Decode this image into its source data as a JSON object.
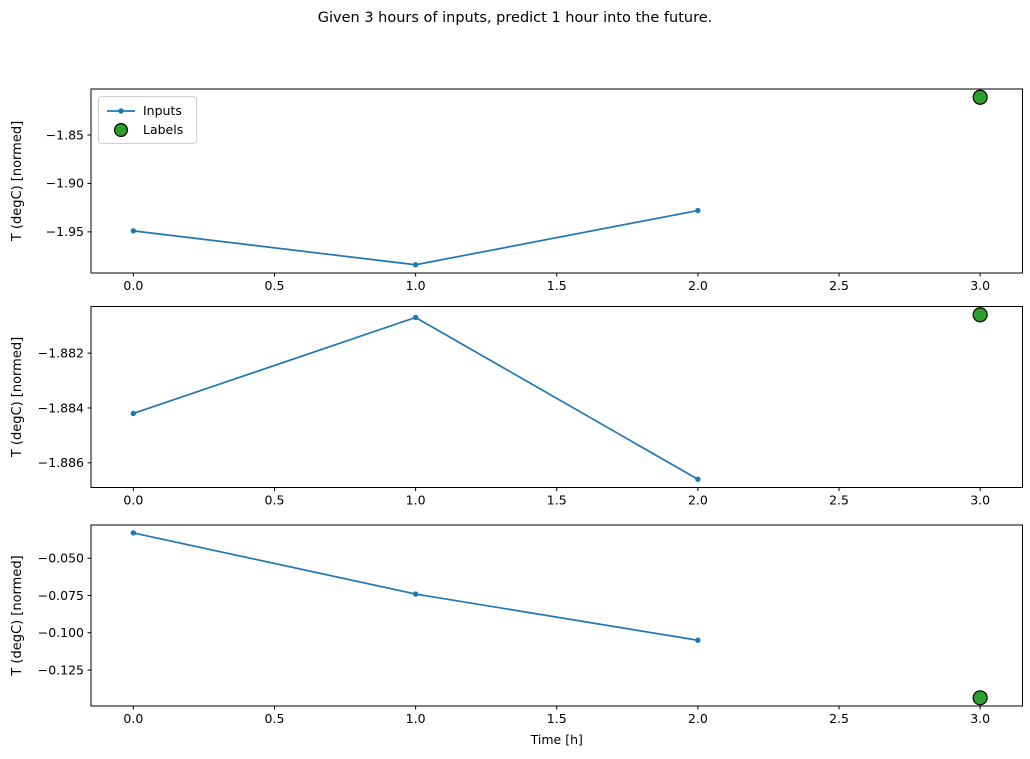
{
  "title": "Given 3 hours of inputs, predict 1 hour into the future.",
  "xlabel": "Time [h]",
  "ylabel": "T (degC) [normed]",
  "colors": {
    "inputs": "#1f77b4",
    "labels_fill": "#2ca02c",
    "labels_edge": "#000000",
    "axis": "#000000",
    "text": "#000000",
    "legend_border": "#cccccc",
    "background": "#ffffff"
  },
  "legend": {
    "position": "upper left of first subplot",
    "items": [
      {
        "label": "Inputs",
        "type": "line-with-dot-marker",
        "color": "#1f77b4"
      },
      {
        "label": "Labels",
        "type": "filled-circle-black-edge",
        "color": "#2ca02c"
      }
    ]
  },
  "chart_data": [
    {
      "type": "line",
      "subplot": 1,
      "xlabel": "",
      "ylabel": "T (degC) [normed]",
      "xlim": [
        -0.15,
        3.15
      ],
      "ylim": [
        -1.9925,
        -1.8025
      ],
      "grid": false,
      "xticks": [
        0.0,
        0.5,
        1.0,
        1.5,
        2.0,
        2.5,
        3.0
      ],
      "xtick_labels": [
        "0.0",
        "0.5",
        "1.0",
        "1.5",
        "2.0",
        "2.5",
        "3.0"
      ],
      "yticks": [
        -1.85,
        -1.9,
        -1.95
      ],
      "ytick_labels": [
        "−1.85",
        "−1.90",
        "−1.95"
      ],
      "series": [
        {
          "name": "Inputs",
          "type": "line",
          "marker": "dot",
          "color": "#1f77b4",
          "x": [
            0,
            1,
            2
          ],
          "y": [
            -1.949,
            -1.984,
            -1.928
          ]
        },
        {
          "name": "Labels",
          "type": "scatter",
          "marker": "circle",
          "color": "#2ca02c",
          "edge": "#000000",
          "x": [
            3
          ],
          "y": [
            -1.811
          ]
        }
      ],
      "legend_visible": true
    },
    {
      "type": "line",
      "subplot": 2,
      "xlabel": "",
      "ylabel": "T (degC) [normed]",
      "xlim": [
        -0.15,
        3.15
      ],
      "ylim": [
        -1.8869,
        -1.8803
      ],
      "grid": false,
      "xticks": [
        0.0,
        0.5,
        1.0,
        1.5,
        2.0,
        2.5,
        3.0
      ],
      "xtick_labels": [
        "0.0",
        "0.5",
        "1.0",
        "1.5",
        "2.0",
        "2.5",
        "3.0"
      ],
      "yticks": [
        -1.882,
        -1.884,
        -1.886
      ],
      "ytick_labels": [
        "−1.882",
        "−1.884",
        "−1.886"
      ],
      "series": [
        {
          "name": "Inputs",
          "type": "line",
          "marker": "dot",
          "color": "#1f77b4",
          "x": [
            0,
            1,
            2
          ],
          "y": [
            -1.8842,
            -1.8807,
            -1.8866
          ]
        },
        {
          "name": "Labels",
          "type": "scatter",
          "marker": "circle",
          "color": "#2ca02c",
          "edge": "#000000",
          "x": [
            3
          ],
          "y": [
            -1.8806
          ]
        }
      ],
      "legend_visible": false
    },
    {
      "type": "line",
      "subplot": 3,
      "xlabel": "Time [h]",
      "ylabel": "T (degC) [normed]",
      "xlim": [
        -0.15,
        3.15
      ],
      "ylim": [
        -0.1491,
        -0.0277
      ],
      "grid": false,
      "xticks": [
        0.0,
        0.5,
        1.0,
        1.5,
        2.0,
        2.5,
        3.0
      ],
      "xtick_labels": [
        "0.0",
        "0.5",
        "1.0",
        "1.5",
        "2.0",
        "2.5",
        "3.0"
      ],
      "yticks": [
        -0.05,
        -0.075,
        -0.1,
        -0.125
      ],
      "ytick_labels": [
        "−0.050",
        "−0.075",
        "−0.100",
        "−0.125"
      ],
      "series": [
        {
          "name": "Inputs",
          "type": "line",
          "marker": "dot",
          "color": "#1f77b4",
          "x": [
            0,
            1,
            2
          ],
          "y": [
            -0.033,
            -0.074,
            -0.105
          ]
        },
        {
          "name": "Labels",
          "type": "scatter",
          "marker": "circle",
          "color": "#2ca02c",
          "edge": "#000000",
          "x": [
            3
          ],
          "y": [
            -0.1436
          ]
        }
      ],
      "legend_visible": false
    }
  ]
}
